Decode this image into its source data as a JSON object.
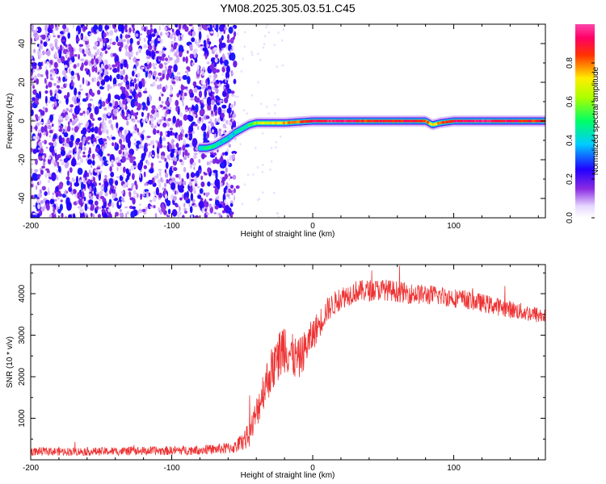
{
  "title": "YM08.2025.305.03.51.C45",
  "chart_data": [
    {
      "type": "heatmap",
      "xlabel": "Height of straight line (km)",
      "ylabel": "Frequency (Hz)",
      "xlim": [
        -200,
        165
      ],
      "ylim": [
        -50,
        50
      ],
      "xticks": [
        -200,
        -100,
        0,
        100
      ],
      "yticks": [
        -40,
        -20,
        0,
        20,
        40
      ],
      "xtick_labels": [
        "-200",
        "-100",
        "0",
        "100"
      ],
      "ytick_labels": [
        "-40",
        "-20",
        "0",
        "20",
        "40"
      ],
      "colorbar": {
        "label": "Normalized spectral amplitude",
        "range": [
          0,
          1
        ],
        "ticks": [
          0,
          0.2,
          0.4,
          0.6,
          0.8
        ],
        "tick_labels": [
          "0.0",
          "0.2",
          "0.4",
          "0.6",
          "0.8"
        ]
      },
      "noise_region": {
        "x_range": [
          -200,
          -55
        ],
        "freq_range": [
          -50,
          50
        ]
      },
      "ridge": {
        "x": [
          -80,
          -75,
          -70,
          -65,
          -60,
          -55,
          -50,
          -45,
          -40,
          -30,
          -20,
          -10,
          0,
          20,
          40,
          60,
          80,
          85,
          90,
          100,
          120,
          140,
          165
        ],
        "freq": [
          -14,
          -14,
          -13,
          -11,
          -9,
          -6,
          -4,
          -2,
          -1,
          -1,
          -1,
          -0.5,
          0,
          0,
          0,
          0,
          0,
          -2,
          -1,
          0,
          0,
          0,
          0
        ],
        "level": [
          0.45,
          0.5,
          0.45,
          0.4,
          0.4,
          0.4,
          0.45,
          0.5,
          0.6,
          0.7,
          0.75,
          0.8,
          0.9,
          0.95,
          0.85,
          0.9,
          0.85,
          0.7,
          0.8,
          0.9,
          0.95,
          0.9,
          0.85
        ]
      }
    },
    {
      "type": "line",
      "xlabel": "Height of straight line (km)",
      "ylabel": "SNR (10 * v/v)",
      "xlim": [
        -200,
        165
      ],
      "ylim": [
        0,
        4700
      ],
      "xticks": [
        -200,
        -100,
        0,
        100
      ],
      "yticks": [
        1000,
        2000,
        3000,
        4000
      ],
      "xtick_labels": [
        "-200",
        "-100",
        "0",
        "100"
      ],
      "ytick_labels": [
        "1000",
        "2000",
        "3000",
        "4000"
      ],
      "series": [
        {
          "name": "SNR",
          "color": "#ee3333",
          "x": [
            -200,
            -150,
            -100,
            -70,
            -55,
            -45,
            -40,
            -35,
            -30,
            -25,
            -20,
            -15,
            -10,
            -5,
            0,
            5,
            10,
            20,
            30,
            50,
            70,
            90,
            110,
            130,
            150,
            165
          ],
          "y": [
            200,
            200,
            220,
            250,
            300,
            600,
            1100,
            1700,
            2100,
            2400,
            2800,
            2500,
            2400,
            2700,
            3000,
            3300,
            3600,
            3900,
            4050,
            4100,
            4000,
            3950,
            3850,
            3700,
            3550,
            3450
          ],
          "noise_half": [
            100,
            100,
            110,
            120,
            150,
            300,
            400,
            500,
            550,
            600,
            700,
            550,
            500,
            450,
            400,
            350,
            300,
            280,
            270,
            260,
            250,
            240,
            230,
            220,
            210,
            200
          ]
        }
      ]
    }
  ]
}
